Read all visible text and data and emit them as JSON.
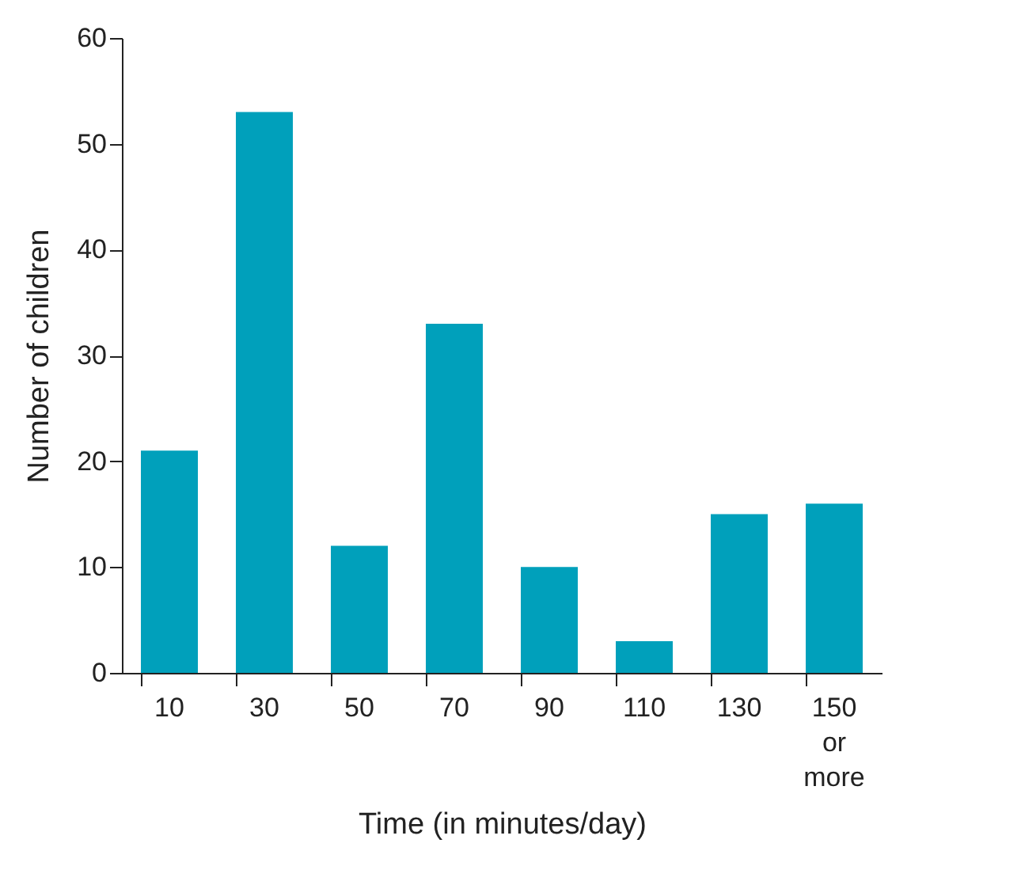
{
  "chart_data": {
    "type": "bar",
    "xlabel": "Time (in minutes/day)",
    "ylabel": "Number of children",
    "categories": [
      "10",
      "30",
      "50",
      "70",
      "90",
      "110",
      "130",
      "150 or more"
    ],
    "series": [
      {
        "color": "#00a0bb",
        "values": [
          21,
          53,
          12,
          33,
          10,
          3,
          15,
          16
        ]
      }
    ],
    "ylim": [
      0,
      60
    ],
    "yticks": [
      0,
      10,
      20,
      30,
      40,
      50,
      60
    ],
    "grid": false
  }
}
